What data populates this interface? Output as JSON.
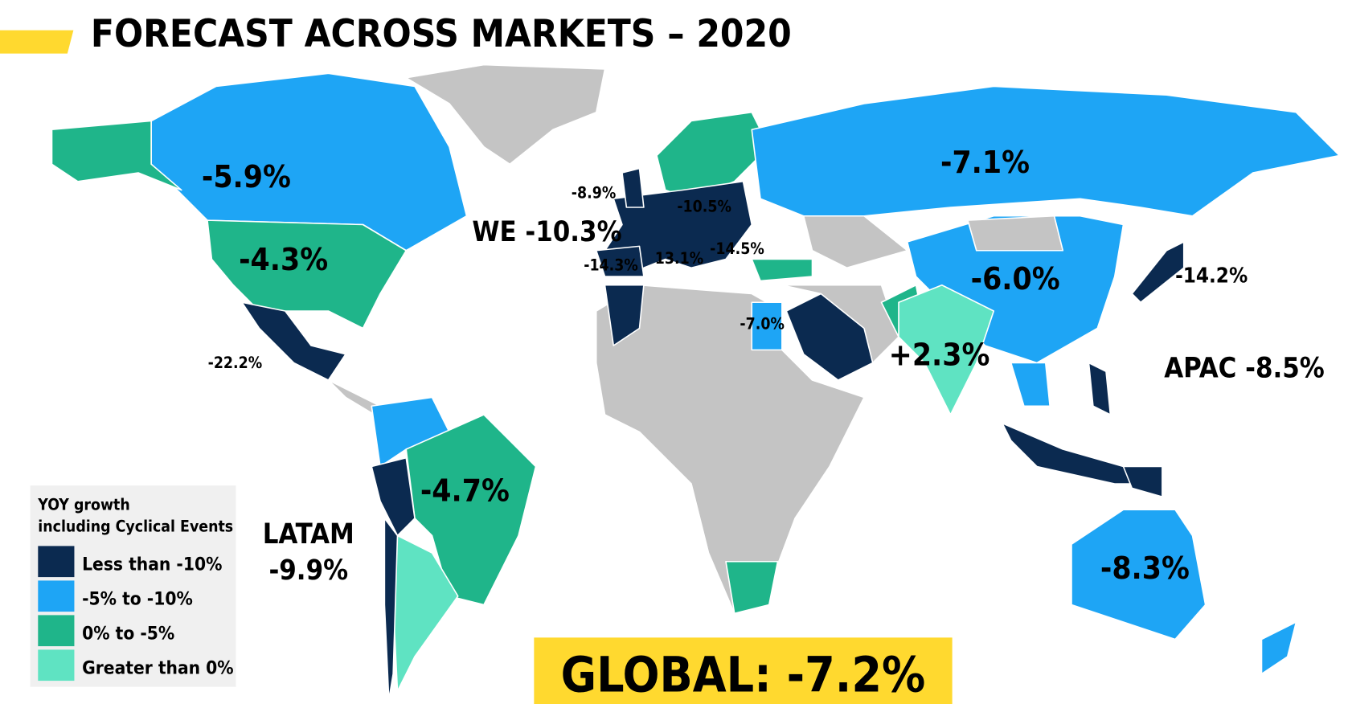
{
  "title": "FORECAST ACROSS MARKETS – 2020",
  "legend": {
    "title_lines": [
      "YOY growth",
      "including Cyclical Events"
    ],
    "items": [
      {
        "label": "Less than -10%",
        "color": "#0b2a50"
      },
      {
        "label": "-5% to -10%",
        "color": "#1ea5f5"
      },
      {
        "label": "0% to -5%",
        "color": "#1fb58a"
      },
      {
        "label": "Greater than 0%",
        "color": "#5fe3c2"
      }
    ]
  },
  "labels": [
    {
      "text": "-5.9%"
    },
    {
      "text": "-4.3%"
    },
    {
      "text": "-7.1%"
    },
    {
      "text": "-6.0%"
    },
    {
      "text": "+2.3%"
    },
    {
      "text": "-8.3%"
    },
    {
      "text": "-4.7%"
    },
    {
      "text": "WE -10.3%"
    },
    {
      "text": "APAC -8.5%"
    },
    {
      "text": "LATAM"
    },
    {
      "text": "-9.9%"
    },
    {
      "text": "-8.9%"
    },
    {
      "text": "-10.5%"
    },
    {
      "text": "-14.3%"
    },
    {
      "text": "13.1%"
    },
    {
      "text": "-14.5%"
    },
    {
      "text": "-7.0%"
    },
    {
      "text": "-22.2%"
    },
    {
      "text": "-14.2%"
    }
  ],
  "global": "GLOBAL: -7.2%"
}
